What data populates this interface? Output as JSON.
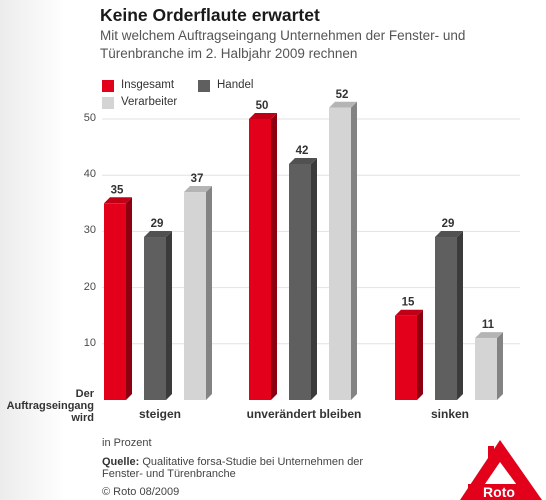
{
  "title": "Keine Orderflaute erwartet",
  "subtitle": "Mit welchem Auftragseingang Unternehmen der Fenster- und Türenbranche im 2. Halbjahr 2009 rechnen",
  "ylabel": "Der Auftragseingang wird",
  "unit_note": "in Prozent",
  "source_label": "Quelle:",
  "source_text": "Qualitative forsa-Studie bei Unternehmen der Fenster- und Türenbranche",
  "copyright": "© Roto 08/2009",
  "logo_text": "Roto",
  "colors": {
    "Insgesamt": "#e3001b",
    "Handel": "#5f5f5f",
    "Verarbeiter": "#d4d4d4",
    "grid": "#e2e2e2"
  },
  "chart_data": {
    "type": "bar",
    "categories": [
      "steigen",
      "unverändert bleiben",
      "sinken"
    ],
    "series": [
      {
        "name": "Insgesamt",
        "values": [
          35,
          50,
          15
        ]
      },
      {
        "name": "Handel",
        "values": [
          29,
          42,
          29
        ]
      },
      {
        "name": "Verarbeiter",
        "values": [
          37,
          52,
          11
        ]
      }
    ],
    "yticks": [
      10,
      20,
      30,
      40,
      50
    ],
    "ylim": [
      0,
      55
    ],
    "grid": true,
    "legend": "top-left"
  }
}
